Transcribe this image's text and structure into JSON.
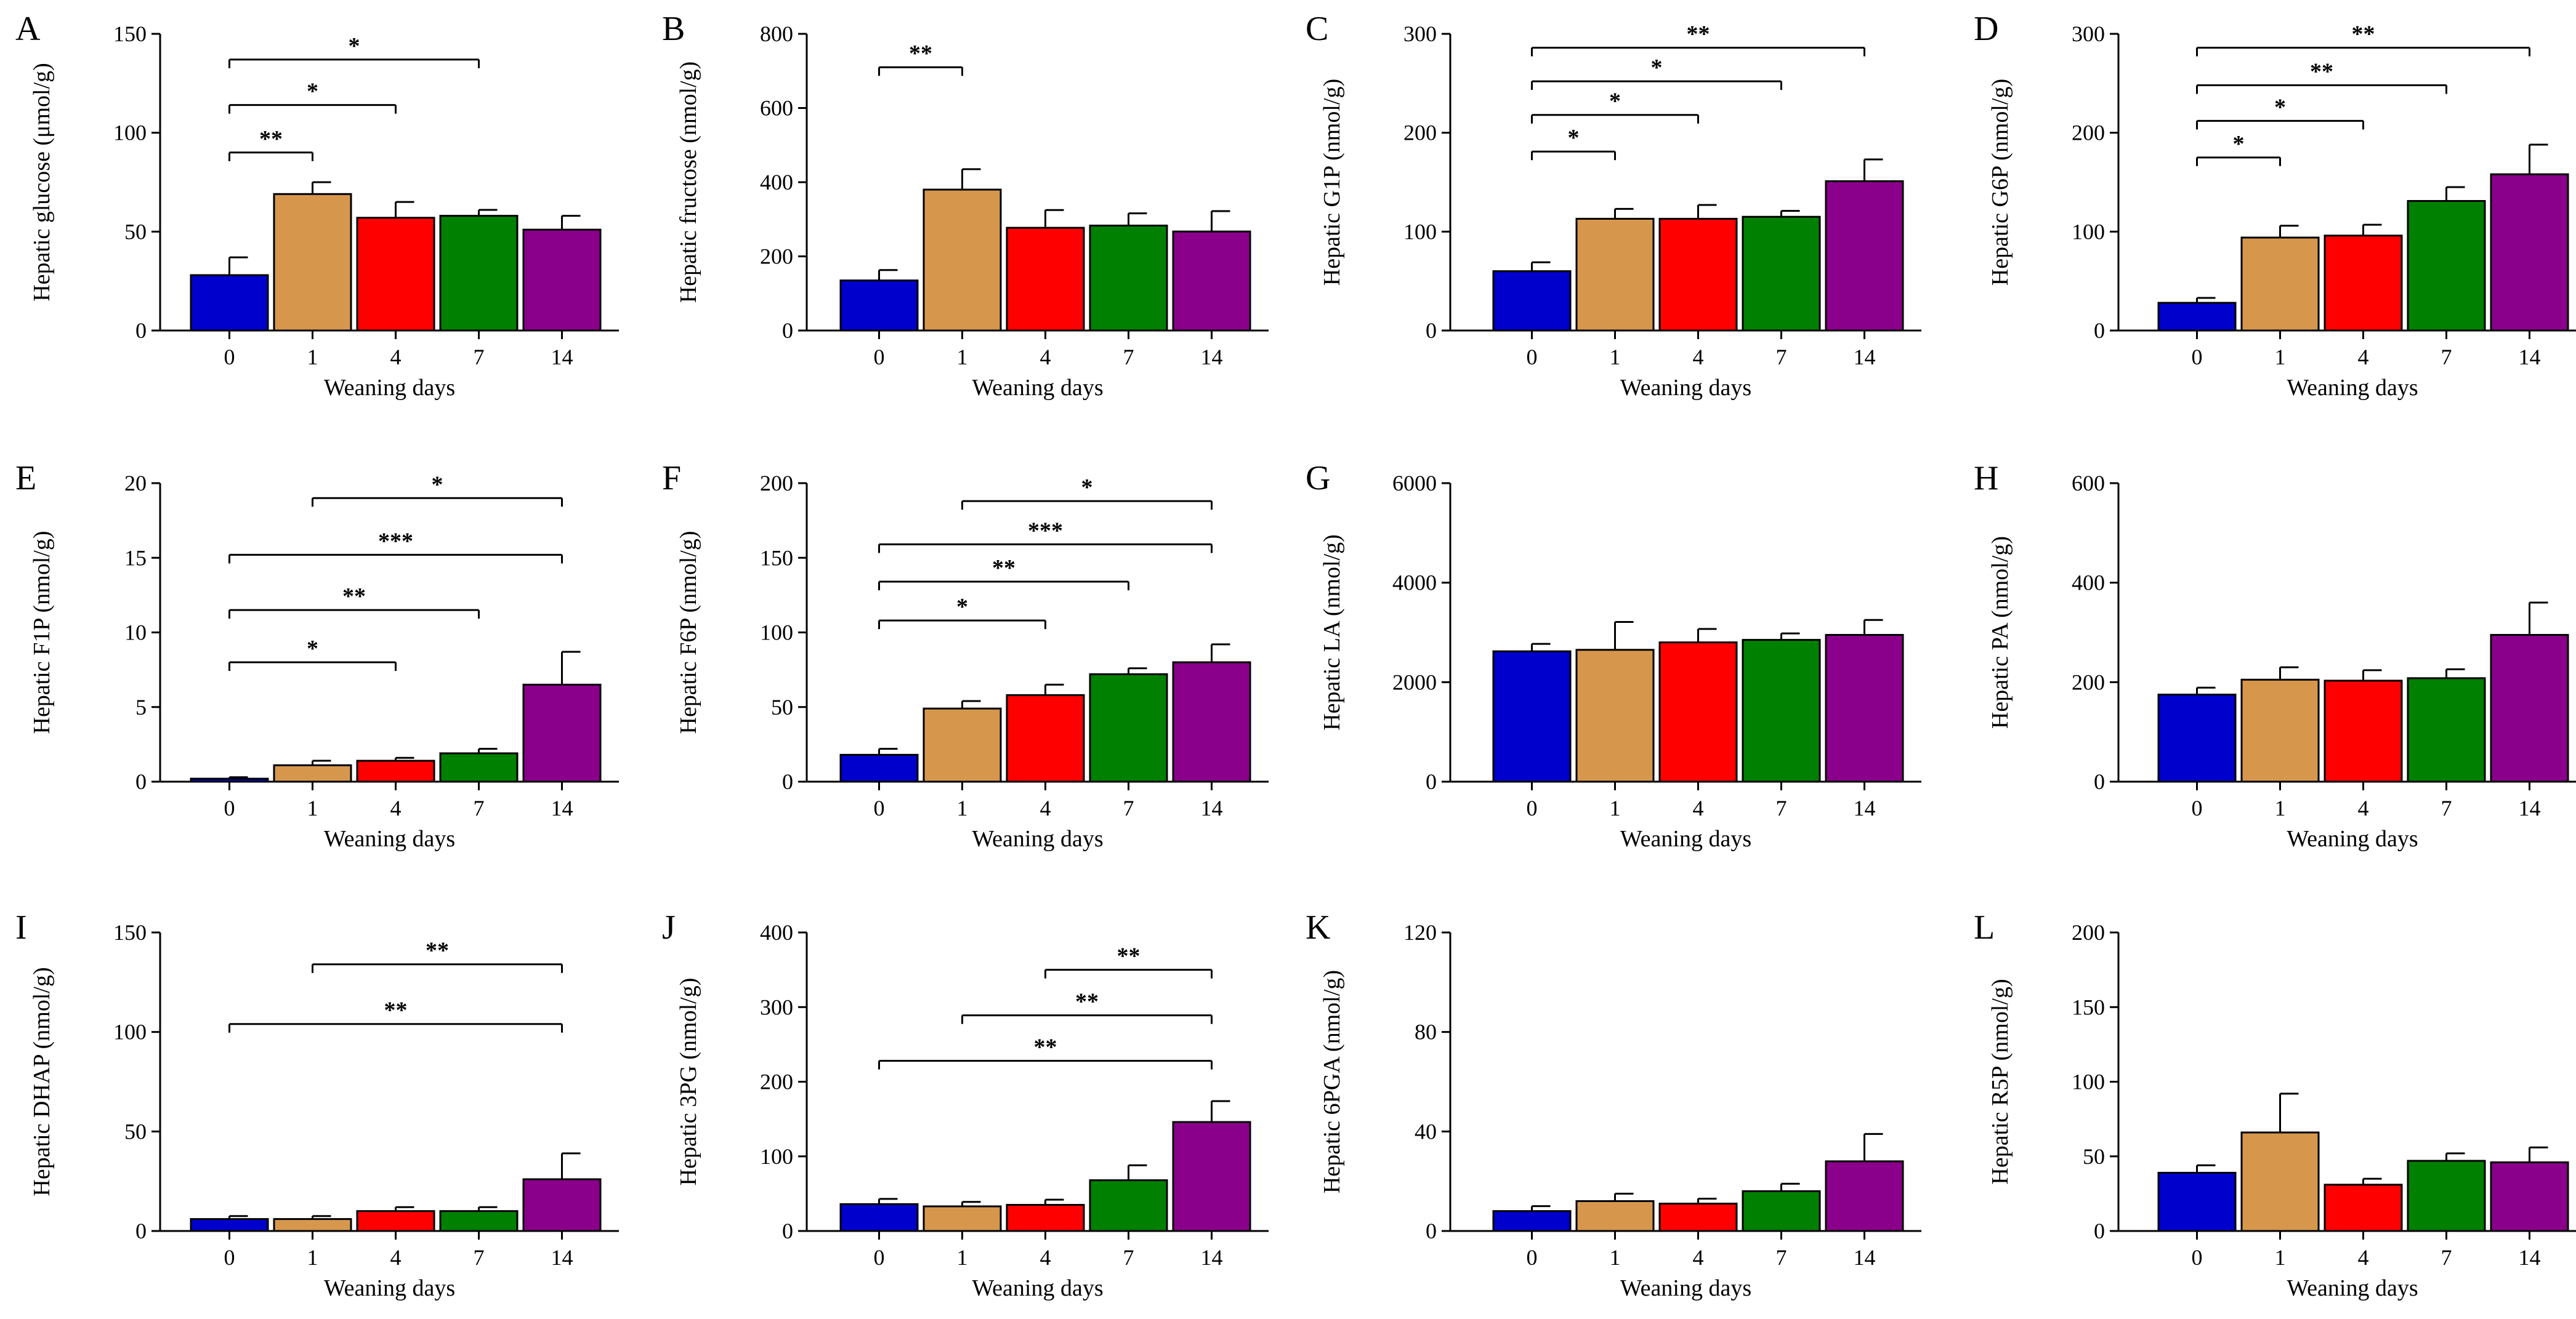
{
  "figure": {
    "colors": {
      "0": "#0000cc",
      "1": "#d6974d",
      "4": "#ff0000",
      "7": "#008000",
      "14": "#8b008b"
    }
  },
  "chart_data": [
    {
      "panel": "A",
      "type": "bar",
      "title": "",
      "xlabel": "Weaning days",
      "ylabel": "Hepatic glucose (μmol/g)",
      "categories": [
        "0",
        "1",
        "4",
        "7",
        "14"
      ],
      "values": [
        28,
        69,
        57,
        58,
        51
      ],
      "errors": [
        9,
        6,
        8,
        3,
        7
      ],
      "ylim": [
        0,
        150
      ],
      "yticks": [
        0,
        50,
        100,
        150
      ],
      "significance": [
        {
          "from": 0,
          "to": 1,
          "label": "**",
          "level": 90
        },
        {
          "from": 0,
          "to": 2,
          "label": "*",
          "level": 114
        },
        {
          "from": 0,
          "to": 3,
          "label": "*",
          "level": 137
        }
      ]
    },
    {
      "panel": "B",
      "type": "bar",
      "title": "",
      "xlabel": "Weaning days",
      "ylabel": "Hepatic fructose (nmol/g)",
      "categories": [
        "0",
        "1",
        "4",
        "7",
        "14"
      ],
      "values": [
        135,
        380,
        277,
        283,
        267
      ],
      "errors": [
        28,
        55,
        48,
        33,
        55
      ],
      "ylim": [
        0,
        800
      ],
      "yticks": [
        0,
        200,
        400,
        600,
        800
      ],
      "significance": [
        {
          "from": 0,
          "to": 1,
          "label": "**",
          "level": 710
        }
      ]
    },
    {
      "panel": "C",
      "type": "bar",
      "title": "",
      "xlabel": "Weaning days",
      "ylabel": "Hepatic G1P (nmol/g)",
      "categories": [
        "0",
        "1",
        "4",
        "7",
        "14"
      ],
      "values": [
        60,
        113,
        113,
        115,
        151
      ],
      "errors": [
        9,
        10,
        14,
        6,
        22
      ],
      "ylim": [
        0,
        300
      ],
      "yticks": [
        0,
        100,
        200,
        300
      ],
      "significance": [
        {
          "from": 0,
          "to": 1,
          "label": "*",
          "level": 181
        },
        {
          "from": 0,
          "to": 2,
          "label": "*",
          "level": 218
        },
        {
          "from": 0,
          "to": 3,
          "label": "*",
          "level": 252
        },
        {
          "from": 0,
          "to": 4,
          "label": "**",
          "level": 286
        }
      ]
    },
    {
      "panel": "D",
      "type": "bar",
      "title": "",
      "xlabel": "Weaning days",
      "ylabel": "Hepatic G6P (nmol/g)",
      "categories": [
        "0",
        "1",
        "4",
        "7",
        "14"
      ],
      "values": [
        28,
        94,
        96,
        131,
        158
      ],
      "errors": [
        5,
        12,
        11,
        14,
        30
      ],
      "ylim": [
        0,
        300
      ],
      "yticks": [
        0,
        100,
        200,
        300
      ],
      "significance": [
        {
          "from": 0,
          "to": 1,
          "label": "*",
          "level": 175
        },
        {
          "from": 0,
          "to": 2,
          "label": "*",
          "level": 212
        },
        {
          "from": 0,
          "to": 3,
          "label": "**",
          "level": 248
        },
        {
          "from": 0,
          "to": 4,
          "label": "**",
          "level": 286
        }
      ]
    },
    {
      "panel": "E",
      "type": "bar",
      "title": "",
      "xlabel": "Weaning days",
      "ylabel": "Hepatic F1P (nmol/g)",
      "categories": [
        "0",
        "1",
        "4",
        "7",
        "14"
      ],
      "values": [
        0.2,
        1.1,
        1.4,
        1.9,
        6.5
      ],
      "errors": [
        0.1,
        0.3,
        0.2,
        0.3,
        2.2
      ],
      "ylim": [
        0,
        20
      ],
      "yticks": [
        0,
        5,
        10,
        15,
        20
      ],
      "significance": [
        {
          "from": 0,
          "to": 2,
          "label": "*",
          "level": 8
        },
        {
          "from": 0,
          "to": 3,
          "label": "**",
          "level": 11.5
        },
        {
          "from": 0,
          "to": 4,
          "label": "***",
          "level": 15.2
        },
        {
          "from": 1,
          "to": 4,
          "label": "*",
          "level": 19
        }
      ]
    },
    {
      "panel": "F",
      "type": "bar",
      "title": "",
      "xlabel": "Weaning days",
      "ylabel": "Hepatic F6P (nmol/g)",
      "categories": [
        "0",
        "1",
        "4",
        "7",
        "14"
      ],
      "values": [
        18,
        49,
        58,
        72,
        80
      ],
      "errors": [
        4,
        5,
        7,
        4,
        12
      ],
      "ylim": [
        0,
        200
      ],
      "yticks": [
        0,
        50,
        100,
        150,
        200
      ],
      "significance": [
        {
          "from": 0,
          "to": 2,
          "label": "*",
          "level": 108
        },
        {
          "from": 0,
          "to": 3,
          "label": "**",
          "level": 134
        },
        {
          "from": 0,
          "to": 4,
          "label": "***",
          "level": 159
        },
        {
          "from": 1,
          "to": 4,
          "label": "*",
          "level": 188
        }
      ]
    },
    {
      "panel": "G",
      "type": "bar",
      "title": "",
      "xlabel": "Weaning days",
      "ylabel": "Hepatic LA  (nmol/g)",
      "categories": [
        "0",
        "1",
        "4",
        "7",
        "14"
      ],
      "values": [
        2620,
        2650,
        2800,
        2850,
        2950
      ],
      "errors": [
        150,
        560,
        270,
        130,
        300
      ],
      "ylim": [
        0,
        6000
      ],
      "yticks": [
        0,
        2000,
        4000,
        6000
      ],
      "significance": []
    },
    {
      "panel": "H",
      "type": "bar",
      "title": "",
      "xlabel": "Weaning days",
      "ylabel": "Hepatic PA (nmol/g)",
      "categories": [
        "0",
        "1",
        "4",
        "7",
        "14"
      ],
      "values": [
        175,
        205,
        203,
        208,
        295
      ],
      "errors": [
        14,
        25,
        21,
        18,
        65
      ],
      "ylim": [
        0,
        600
      ],
      "yticks": [
        0,
        200,
        400,
        600
      ],
      "significance": []
    },
    {
      "panel": "I",
      "type": "bar",
      "title": "",
      "xlabel": "Weaning days",
      "ylabel": "Hepatic DHAP (nmol/g)",
      "categories": [
        "0",
        "1",
        "4",
        "7",
        "14"
      ],
      "values": [
        6,
        6,
        10,
        10,
        26
      ],
      "errors": [
        1.5,
        1.5,
        2,
        2,
        13
      ],
      "ylim": [
        0,
        150
      ],
      "yticks": [
        0,
        50,
        100,
        150
      ],
      "significance": [
        {
          "from": 0,
          "to": 4,
          "label": "**",
          "level": 104
        },
        {
          "from": 1,
          "to": 4,
          "label": "**",
          "level": 134
        }
      ]
    },
    {
      "panel": "J",
      "type": "bar",
      "title": "",
      "xlabel": "Weaning days",
      "ylabel": "Hepatic 3PG (nmol/g)",
      "categories": [
        "0",
        "1",
        "4",
        "7",
        "14"
      ],
      "values": [
        36,
        33,
        35,
        68,
        146
      ],
      "errors": [
        7,
        6,
        7,
        20,
        28
      ],
      "ylim": [
        0,
        400
      ],
      "yticks": [
        0,
        100,
        200,
        300,
        400
      ],
      "significance": [
        {
          "from": 0,
          "to": 4,
          "label": "**",
          "level": 228
        },
        {
          "from": 1,
          "to": 4,
          "label": "**",
          "level": 289
        },
        {
          "from": 2,
          "to": 4,
          "label": "**",
          "level": 350
        }
      ]
    },
    {
      "panel": "K",
      "type": "bar",
      "title": "",
      "xlabel": "Weaning days",
      "ylabel": "Hepatic 6PGA (nmol/g)",
      "categories": [
        "0",
        "1",
        "4",
        "7",
        "14"
      ],
      "values": [
        8,
        12,
        11,
        16,
        28
      ],
      "errors": [
        2,
        3,
        2,
        3,
        11
      ],
      "ylim": [
        0,
        120
      ],
      "yticks": [
        0,
        40,
        80,
        120
      ],
      "significance": []
    },
    {
      "panel": "L",
      "type": "bar",
      "title": "",
      "xlabel": "Weaning days",
      "ylabel": "Hepatic R5P (nmol/g)",
      "categories": [
        "0",
        "1",
        "4",
        "7",
        "14"
      ],
      "values": [
        39,
        66,
        31,
        47,
        46
      ],
      "errors": [
        5,
        26,
        4,
        5,
        10
      ],
      "ylim": [
        0,
        200
      ],
      "yticks": [
        0,
        50,
        100,
        150,
        200
      ],
      "significance": []
    }
  ]
}
